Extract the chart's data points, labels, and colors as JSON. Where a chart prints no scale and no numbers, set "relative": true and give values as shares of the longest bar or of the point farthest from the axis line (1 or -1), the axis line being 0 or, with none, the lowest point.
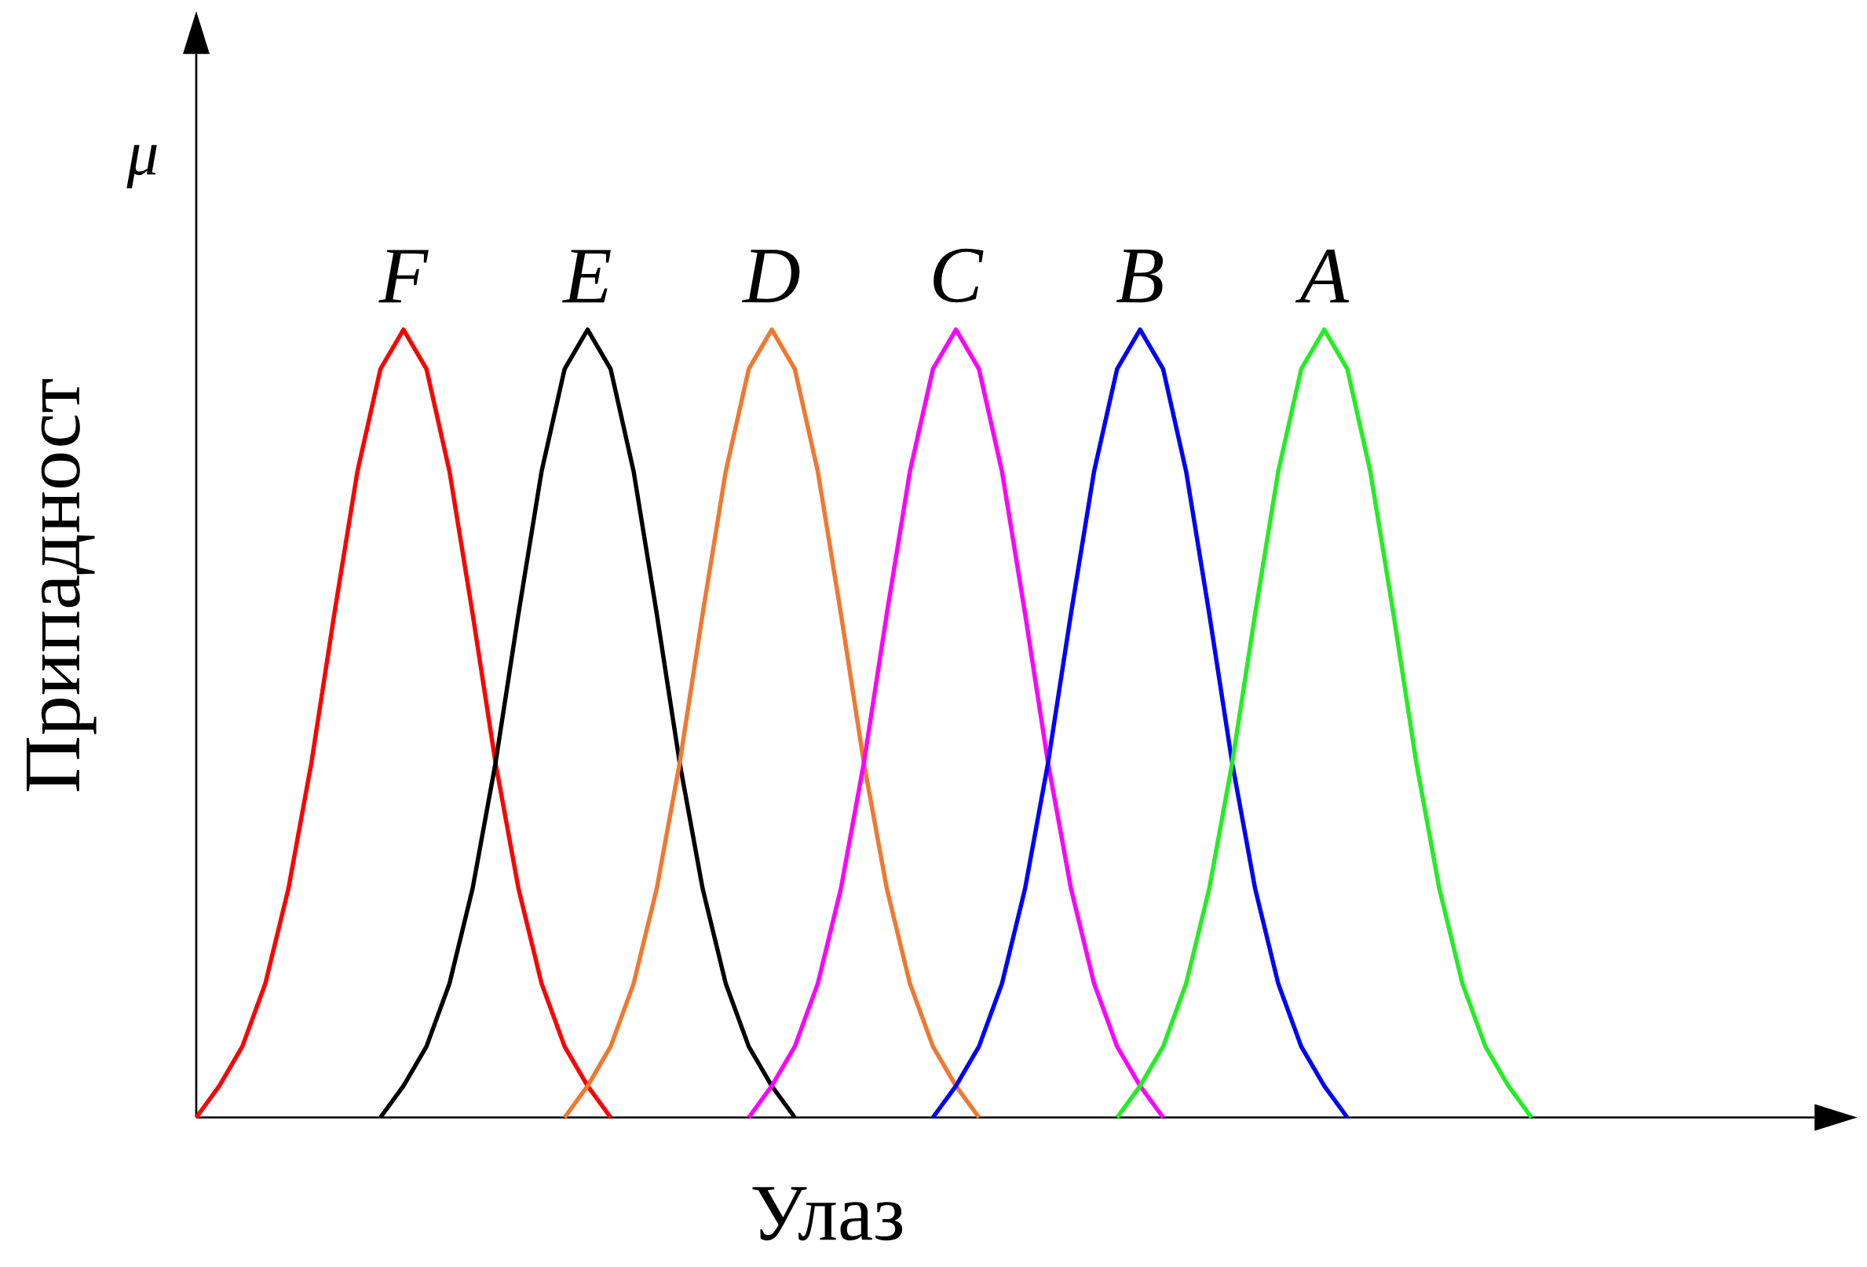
{
  "chart_data": {
    "type": "line",
    "relative": true,
    "xlabel": "Улаз",
    "ylabel": "Припадност",
    "annotations": [
      "μ"
    ],
    "categories": [
      null,
      null,
      null,
      null,
      null,
      null,
      null,
      null,
      null,
      null,
      null,
      null,
      null,
      null,
      null,
      null,
      null,
      null,
      null,
      null,
      null,
      null,
      null,
      null,
      null,
      null,
      null,
      null,
      null,
      null,
      null,
      null,
      null,
      null,
      null,
      null,
      null,
      null,
      null,
      null,
      null,
      null,
      null,
      null,
      null,
      null,
      null,
      null,
      null,
      null,
      null,
      null,
      null,
      null,
      null,
      null,
      null,
      null,
      null,
      null,
      null,
      null,
      null,
      null,
      null,
      null,
      null,
      null,
      null,
      null,
      null
    ],
    "series": [
      {
        "name": "F",
        "color": "#ff0000",
        "values": [
          0,
          0.04,
          0.09,
          0.17,
          0.29,
          0.45,
          0.64,
          0.82,
          0.95,
          1,
          0.95,
          0.82,
          0.64,
          0.45,
          0.29,
          0.17,
          0.09,
          0.04,
          0,
          null,
          null,
          null,
          null,
          null,
          null,
          null,
          null,
          null,
          null,
          null,
          null,
          null,
          null,
          null,
          null,
          null,
          null,
          null,
          null,
          null,
          null,
          null,
          null,
          null,
          null,
          null,
          null,
          null,
          null,
          null,
          null,
          null,
          null,
          null,
          null,
          null,
          null,
          null,
          null,
          null,
          null,
          null,
          null,
          null,
          null,
          null,
          null,
          null,
          null,
          null,
          null
        ]
      },
      {
        "name": "E",
        "color": "#000000",
        "values": [
          null,
          null,
          null,
          null,
          null,
          null,
          null,
          null,
          0,
          0.04,
          0.09,
          0.17,
          0.29,
          0.45,
          0.64,
          0.82,
          0.95,
          1,
          0.95,
          0.82,
          0.64,
          0.45,
          0.29,
          0.17,
          0.09,
          0.04,
          0,
          null,
          null,
          null,
          null,
          null,
          null,
          null,
          null,
          null,
          null,
          null,
          null,
          null,
          null,
          null,
          null,
          null,
          null,
          null,
          null,
          null,
          null,
          null,
          null,
          null,
          null,
          null,
          null,
          null,
          null,
          null,
          null,
          null,
          null,
          null,
          null,
          null,
          null,
          null,
          null,
          null,
          null,
          null,
          null
        ]
      },
      {
        "name": "D",
        "color": "#f07830",
        "values": [
          null,
          null,
          null,
          null,
          null,
          null,
          null,
          null,
          null,
          null,
          null,
          null,
          null,
          null,
          null,
          null,
          0,
          0.04,
          0.09,
          0.17,
          0.29,
          0.45,
          0.64,
          0.82,
          0.95,
          1,
          0.95,
          0.82,
          0.64,
          0.45,
          0.29,
          0.17,
          0.09,
          0.04,
          0,
          null,
          null,
          null,
          null,
          null,
          null,
          null,
          null,
          null,
          null,
          null,
          null,
          null,
          null,
          null,
          null,
          null,
          null,
          null,
          null,
          null,
          null,
          null,
          null,
          null,
          null,
          null,
          null,
          null,
          null,
          null,
          null,
          null,
          null,
          null,
          null
        ]
      },
      {
        "name": "C",
        "color": "#ff00ff",
        "values": [
          null,
          null,
          null,
          null,
          null,
          null,
          null,
          null,
          null,
          null,
          null,
          null,
          null,
          null,
          null,
          null,
          null,
          null,
          null,
          null,
          null,
          null,
          null,
          null,
          0,
          0.04,
          0.09,
          0.17,
          0.29,
          0.45,
          0.64,
          0.82,
          0.95,
          1,
          0.95,
          0.82,
          0.64,
          0.45,
          0.29,
          0.17,
          0.09,
          0.04,
          0,
          null,
          null,
          null,
          null,
          null,
          null,
          null,
          null,
          null,
          null,
          null,
          null,
          null,
          null,
          null,
          null,
          null,
          null,
          null,
          null,
          null,
          null,
          null,
          null,
          null,
          null,
          null,
          null
        ]
      },
      {
        "name": "B",
        "color": "#0000ff",
        "values": [
          null,
          null,
          null,
          null,
          null,
          null,
          null,
          null,
          null,
          null,
          null,
          null,
          null,
          null,
          null,
          null,
          null,
          null,
          null,
          null,
          null,
          null,
          null,
          null,
          null,
          null,
          null,
          null,
          null,
          null,
          null,
          null,
          0,
          0.04,
          0.09,
          0.17,
          0.29,
          0.45,
          0.64,
          0.82,
          0.95,
          1,
          0.95,
          0.82,
          0.64,
          0.45,
          0.29,
          0.17,
          0.09,
          0.04,
          0,
          null,
          null,
          null,
          null,
          null,
          null,
          null,
          null,
          null,
          null,
          null,
          null,
          null,
          null,
          null,
          null,
          null,
          null,
          null,
          null
        ]
      },
      {
        "name": "A",
        "color": "#22ee22",
        "values": [
          null,
          null,
          null,
          null,
          null,
          null,
          null,
          null,
          null,
          null,
          null,
          null,
          null,
          null,
          null,
          null,
          null,
          null,
          null,
          null,
          null,
          null,
          null,
          null,
          null,
          null,
          null,
          null,
          null,
          null,
          null,
          null,
          null,
          null,
          null,
          null,
          null,
          null,
          null,
          null,
          0,
          0.04,
          0.09,
          0.17,
          0.29,
          0.45,
          0.64,
          0.82,
          0.95,
          1,
          0.95,
          0.82,
          0.64,
          0.45,
          0.29,
          0.17,
          0.09,
          0.04,
          0,
          null,
          null,
          null,
          null,
          null,
          null,
          null,
          null,
          null,
          null,
          null,
          null
        ]
      }
    ]
  }
}
